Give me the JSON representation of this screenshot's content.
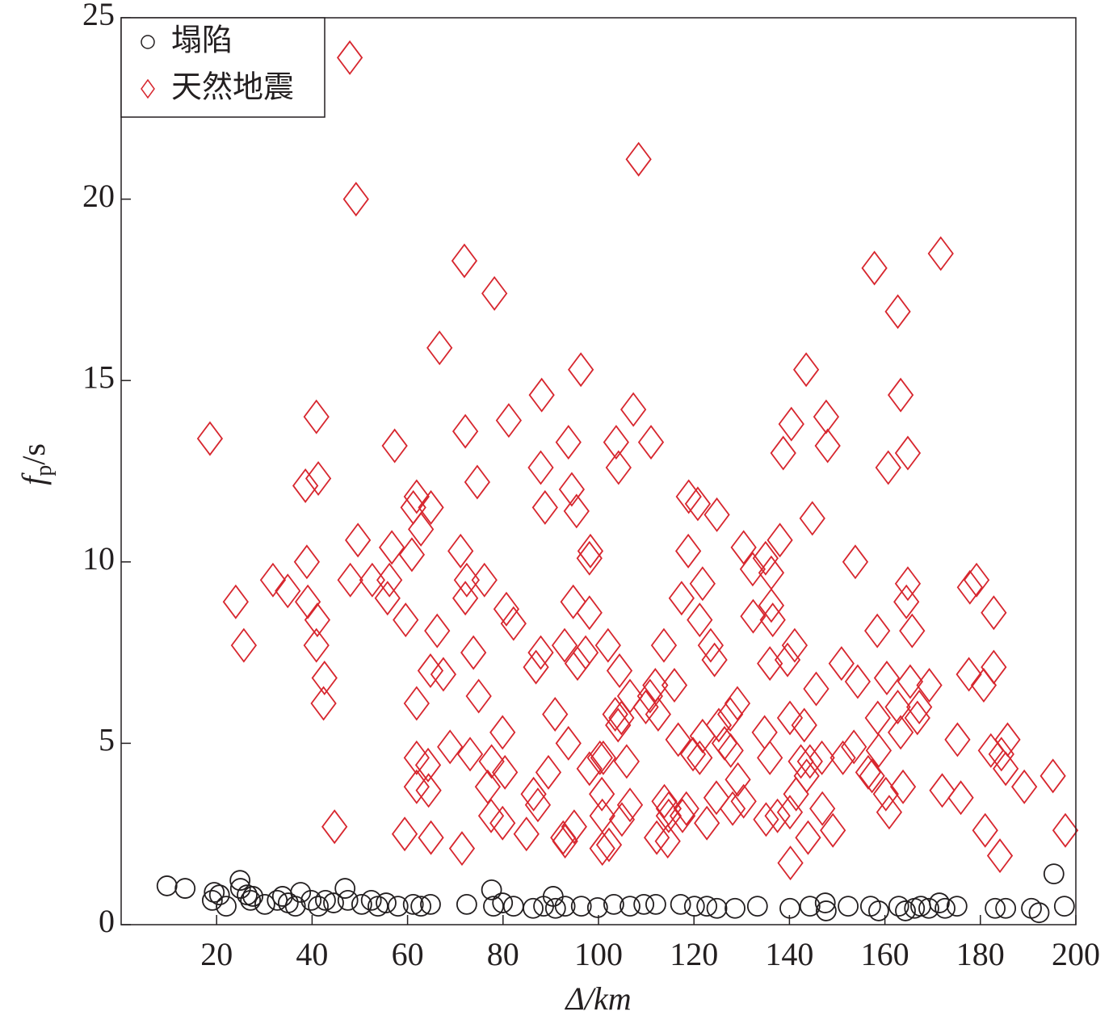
{
  "chart_data": {
    "type": "scatter",
    "xlabel": "Δ/km",
    "ylabel_parts": [
      "f",
      "p",
      "/s"
    ],
    "xlim": [
      0,
      200
    ],
    "ylim": [
      0,
      25
    ],
    "xticks": [
      20,
      40,
      60,
      80,
      100,
      120,
      140,
      160,
      180,
      200
    ],
    "yticks": [
      0,
      5,
      10,
      15,
      20,
      25
    ],
    "legend": "upper left",
    "series": [
      {
        "name": "塌陷",
        "color": "#231f20",
        "marker": "circle",
        "x": [
          9.6,
          13.4,
          19.1,
          19.5,
          20.6,
          22.0,
          24.9,
          25.0,
          26.4,
          27.1,
          27.6,
          30.1,
          32.7,
          33.8,
          35.0,
          36.5,
          37.6,
          39.8,
          41.3,
          42.8,
          44.5,
          46.9,
          47.5,
          50.4,
          52.4,
          53.8,
          55.5,
          58.0,
          61.2,
          62.8,
          64.8,
          72.4,
          77.6,
          78.0,
          79.9,
          82.2,
          86.3,
          88.5,
          90.5,
          91.0,
          93.0,
          96.4,
          99.8,
          103.2,
          106.6,
          109.5,
          112.0,
          117.2,
          120.1,
          122.7,
          124.8,
          128.6,
          133.3,
          140.1,
          144.3,
          147.5,
          147.7,
          152.3,
          157.0,
          158.7,
          162.9,
          164.3,
          166.2,
          167.5,
          169.2,
          171.4,
          172.6,
          175.1,
          183.1,
          185.3,
          190.7,
          192.3,
          195.4,
          197.6
        ],
        "values": [
          1.07,
          1.0,
          0.67,
          0.89,
          0.82,
          0.51,
          1.22,
          1.0,
          0.82,
          0.67,
          0.78,
          0.56,
          0.67,
          0.78,
          0.6,
          0.51,
          0.89,
          0.67,
          0.51,
          0.67,
          0.6,
          1.0,
          0.67,
          0.56,
          0.67,
          0.51,
          0.6,
          0.51,
          0.56,
          0.51,
          0.56,
          0.56,
          0.96,
          0.51,
          0.6,
          0.51,
          0.45,
          0.51,
          0.78,
          0.45,
          0.51,
          0.51,
          0.47,
          0.56,
          0.51,
          0.56,
          0.56,
          0.56,
          0.51,
          0.51,
          0.45,
          0.45,
          0.51,
          0.45,
          0.51,
          0.6,
          0.38,
          0.51,
          0.51,
          0.38,
          0.51,
          0.38,
          0.45,
          0.51,
          0.45,
          0.6,
          0.45,
          0.51,
          0.45,
          0.45,
          0.45,
          0.33,
          1.4,
          0.51
        ]
      },
      {
        "name": "天然地震",
        "color": "#d7262e",
        "marker": "diamond",
        "x": [
          47.9,
          49.2,
          108.4,
          71.9,
          78.2,
          171.7,
          157.8,
          162.7,
          66.7,
          96.3,
          143.5,
          163.3,
          88.1,
          107.3,
          40.9,
          147.7,
          18.6,
          72.1,
          81.2,
          57.3,
          93.7,
          103.7,
          111.0,
          140.4,
          138.7,
          148.0,
          164.8,
          41.3,
          38.6,
          74.6,
          87.9,
          94.4,
          104.2,
          160.7,
          61.9,
          61.2,
          64.9,
          62.8,
          88.8,
          95.4,
          118.9,
          120.8,
          124.8,
          144.8,
          49.6,
          56.7,
          60.9,
          71.1,
          98.3,
          98.1,
          118.8,
          130.4,
          138.0,
          38.9,
          31.8,
          34.9,
          24.0,
          39.1,
          48.0,
          52.6,
          56.2,
          55.8,
          72.4,
          72.1,
          76.1,
          94.7,
          80.7,
          98.1,
          117.4,
          121.8,
          132.3,
          135.0,
          136.2,
          153.8,
          164.8,
          164.5,
          177.8,
          179.2,
          182.8,
          132.4,
          136.2,
          136.5,
          121.2,
          25.7,
          41.1,
          40.9,
          42.6,
          42.4,
          59.6,
          82.2,
          66.2,
          158.4,
          165.7,
          73.8,
          87.9,
          92.9,
          97.3,
          102.0,
          113.7,
          123.5,
          141.1,
          139.6,
          135.9,
          86.9,
          95.6,
          124.3,
          150.9,
          177.6,
          182.8,
          64.8,
          67.5,
          104.4,
          154.3,
          160.4,
          165.3,
          169.3,
          180.7,
          111.9,
          115.9,
          145.6,
          61.9,
          74.9,
          106.6,
          110.8,
          109.9,
          129.1,
          127.6,
          90.9,
          167.2,
          166.8,
          103.5,
          104.8,
          112.5,
          162.7,
          140.1,
          158.5,
          79.9,
          104.1,
          143.1,
          134.8,
          116.7,
          125.2,
          121.8,
          126.4,
          175.2,
          185.7,
          68.9,
          73.1,
          93.7,
          153.5,
          163.3,
          182.2,
          119.8,
          121.2,
          127.7,
          135.9,
          151.2,
          146.8,
          158.7,
          184.4,
          61.9,
          64.3,
          77.6,
          100.3,
          101.0,
          98.1,
          105.9,
          142.4,
          143.6,
          144.3,
          156.5,
          157.3,
          185.3,
          80.4,
          89.5,
          61.9,
          64.4,
          76.8,
          129.2,
          195.2,
          189.2,
          141.4,
          163.8,
          172.0,
          175.9,
          160.2,
          160.9,
          86.4,
          87.3,
          100.7,
          106.6,
          113.8,
          114.7,
          118.4,
          124.7,
          130.4,
          128.1,
          114.7,
          117.6,
          77.5,
          140.1,
          137.5,
          135.1,
          146.9,
          104.9,
          100.8,
          79.9,
          122.7,
          44.7,
          59.4,
          64.9,
          84.9,
          94.9,
          92.6,
          93.0,
          112.2,
          114.5,
          143.9,
          149.1,
          181.0,
          197.8,
          71.4,
          100.8,
          102.2,
          140.2,
          184.1
        ],
        "values": [
          23.9,
          20.0,
          21.1,
          18.3,
          17.4,
          18.5,
          18.1,
          16.9,
          15.9,
          15.3,
          15.3,
          14.6,
          14.6,
          14.2,
          14.0,
          14.0,
          13.4,
          13.6,
          13.9,
          13.2,
          13.3,
          13.3,
          13.3,
          13.8,
          13.0,
          13.2,
          13.0,
          12.3,
          12.1,
          12.2,
          12.6,
          12.0,
          12.6,
          12.6,
          11.8,
          11.5,
          11.5,
          10.9,
          11.5,
          11.4,
          11.8,
          11.6,
          11.3,
          11.2,
          10.6,
          10.4,
          10.2,
          10.3,
          10.3,
          10.1,
          10.3,
          10.4,
          10.6,
          10.0,
          9.5,
          9.2,
          8.9,
          8.9,
          9.5,
          9.5,
          9.5,
          9.0,
          9.5,
          9.0,
          9.5,
          8.9,
          8.7,
          8.6,
          9.0,
          9.4,
          9.8,
          10.1,
          9.7,
          10.0,
          9.4,
          8.9,
          9.3,
          9.5,
          8.6,
          8.5,
          8.8,
          8.4,
          8.4,
          7.7,
          8.4,
          7.7,
          6.8,
          6.1,
          8.4,
          8.3,
          8.1,
          8.1,
          8.1,
          7.5,
          7.5,
          7.7,
          7.5,
          7.7,
          7.7,
          7.7,
          7.7,
          7.3,
          7.2,
          7.1,
          7.2,
          7.3,
          7.2,
          6.9,
          7.1,
          7.0,
          6.9,
          7.0,
          6.7,
          6.8,
          6.7,
          6.6,
          6.6,
          6.6,
          6.6,
          6.5,
          6.1,
          6.3,
          6.3,
          6.3,
          6.0,
          6.1,
          5.8,
          5.8,
          6.0,
          5.7,
          5.8,
          5.7,
          5.8,
          6.0,
          5.7,
          5.7,
          5.3,
          5.5,
          5.5,
          5.3,
          5.1,
          5.5,
          5.2,
          5.0,
          5.1,
          5.1,
          4.9,
          4.7,
          5.0,
          4.9,
          5.3,
          4.8,
          4.7,
          4.6,
          4.8,
          4.6,
          4.6,
          4.6,
          4.8,
          4.7,
          4.6,
          4.4,
          4.5,
          4.6,
          4.6,
          4.3,
          4.5,
          4.5,
          4.1,
          4.5,
          4.2,
          4.1,
          4.3,
          4.2,
          4.2,
          3.8,
          3.7,
          3.8,
          4.0,
          4.1,
          3.8,
          3.6,
          3.8,
          3.7,
          3.5,
          3.6,
          3.1,
          3.6,
          3.3,
          3.6,
          3.3,
          3.4,
          3.2,
          3.2,
          3.5,
          3.4,
          3.2,
          3.0,
          3.0,
          3.0,
          3.1,
          3.0,
          2.9,
          3.2,
          2.9,
          3.0,
          2.8,
          2.8,
          2.7,
          2.5,
          2.4,
          2.5,
          2.7,
          2.4,
          2.3,
          2.4,
          2.3,
          2.4,
          2.6,
          2.6,
          2.6,
          2.1,
          2.1,
          2.2,
          1.7,
          1.9
        ]
      }
    ]
  }
}
